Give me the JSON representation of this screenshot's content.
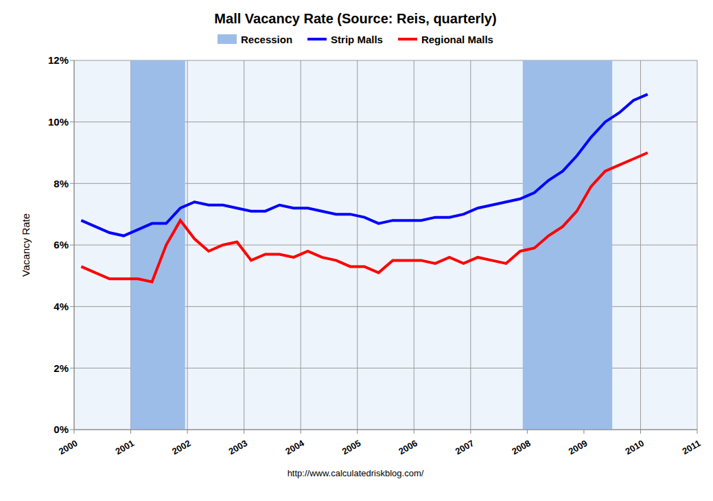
{
  "chart_data": {
    "type": "line",
    "title": "Mall Vacancy Rate (Source: Reis, quarterly)",
    "y_label": "Vacancy Rate",
    "footer": "http://www.calculatedriskblog.com/",
    "x": [
      2000.125,
      2000.375,
      2000.625,
      2000.875,
      2001.125,
      2001.375,
      2001.625,
      2001.875,
      2002.125,
      2002.375,
      2002.625,
      2002.875,
      2003.125,
      2003.375,
      2003.625,
      2003.875,
      2004.125,
      2004.375,
      2004.625,
      2004.875,
      2005.125,
      2005.375,
      2005.625,
      2005.875,
      2006.125,
      2006.375,
      2006.625,
      2006.875,
      2007.125,
      2007.375,
      2007.625,
      2007.875,
      2008.125,
      2008.375,
      2008.625,
      2008.875,
      2009.125,
      2009.375,
      2009.625,
      2009.875,
      2010.125
    ],
    "series": [
      {
        "name": "Strip Malls",
        "color": "#0000ff",
        "values": [
          6.8,
          6.6,
          6.4,
          6.3,
          6.5,
          6.7,
          6.7,
          7.2,
          7.4,
          7.3,
          7.3,
          7.2,
          7.1,
          7.1,
          7.3,
          7.2,
          7.2,
          7.1,
          7.0,
          7.0,
          6.9,
          6.7,
          6.8,
          6.8,
          6.8,
          6.9,
          6.9,
          7.0,
          7.2,
          7.3,
          7.4,
          7.5,
          7.7,
          8.1,
          8.4,
          8.9,
          9.5,
          10.0,
          10.3,
          10.7,
          10.9
        ]
      },
      {
        "name": "Regional Malls",
        "color": "#ff0000",
        "values": [
          5.3,
          5.1,
          4.9,
          4.9,
          4.9,
          4.8,
          6.0,
          6.8,
          6.2,
          5.8,
          6.0,
          6.1,
          5.5,
          5.7,
          5.7,
          5.6,
          5.8,
          5.6,
          5.5,
          5.3,
          5.3,
          5.1,
          5.5,
          5.5,
          5.5,
          5.4,
          5.6,
          5.4,
          5.6,
          5.5,
          5.4,
          5.8,
          5.9,
          6.3,
          6.6,
          7.1,
          7.9,
          8.4,
          8.6,
          8.8,
          9.0
        ]
      }
    ],
    "recessions": {
      "name": "Recession",
      "color": "#9dbde9",
      "ranges": [
        [
          2001.0,
          2001.96
        ],
        [
          2007.92,
          2009.5
        ]
      ]
    },
    "xlim": [
      2000,
      2011
    ],
    "xticks": [
      2000,
      2001,
      2002,
      2003,
      2004,
      2005,
      2006,
      2007,
      2008,
      2009,
      2010,
      2011
    ],
    "ylim": [
      0,
      12
    ],
    "yticks": [
      {
        "value": 0,
        "label": "0%"
      },
      {
        "value": 2,
        "label": "2%"
      },
      {
        "value": 4,
        "label": "4%"
      },
      {
        "value": 6,
        "label": "6%"
      },
      {
        "value": 8,
        "label": "8%"
      },
      {
        "value": 10,
        "label": "10%"
      },
      {
        "value": 12,
        "label": "12%"
      }
    ],
    "grid": true,
    "legend": "top"
  }
}
